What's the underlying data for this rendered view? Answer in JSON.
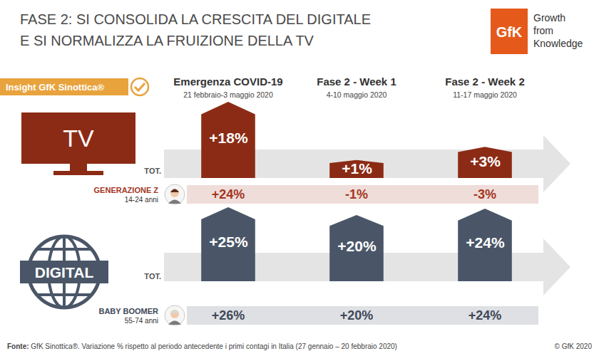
{
  "title": [
    "FASE 2: SI CONSOLIDA LA CRESCITA DEL DIGITALE",
    "E SI NORMALIZZA LA FRUIZIONE DELLA TV"
  ],
  "logo": {
    "text": "GfK",
    "tagline": "Growth from Knowledge"
  },
  "badge": "Insight GfK Sinottica®",
  "period_dates": [
    "21 febbraio-3 maggio 2020",
    "4-10 maggio 2020",
    "11-17 maggio 2020"
  ],
  "chart_data": [
    {
      "type": "bar",
      "title": "TV",
      "categories": [
        "Emergenza COVID-19",
        "Fase 2 - Week 1",
        "Fase 2 - Week 2"
      ],
      "data_labels": true,
      "tick_labels": false,
      "series": [
        {
          "name": "TOT.",
          "type": "bar",
          "color": "#8c2b15",
          "values": [
            18,
            1,
            3
          ],
          "value_labels": [
            "+18%",
            "+1%",
            "+3%"
          ]
        },
        {
          "name": "GENERAZIONE Z",
          "subtitle": "14-24 anni",
          "type": "text",
          "color": "#a3361f",
          "values": [
            24,
            -1,
            -3
          ],
          "value_labels": [
            "+24%",
            "-1%",
            "-3%"
          ]
        }
      ]
    },
    {
      "type": "bar",
      "title": "DIGITAL",
      "categories": [
        "Emergenza COVID-19",
        "Fase 2 - Week 1",
        "Fase 2 - Week 2"
      ],
      "data_labels": true,
      "tick_labels": false,
      "series": [
        {
          "name": "TOT.",
          "type": "bar",
          "color": "#4a5668",
          "values": [
            25,
            20,
            24
          ],
          "value_labels": [
            "+25%",
            "+20%",
            "+24%"
          ]
        },
        {
          "name": "BABY BOOMER",
          "subtitle": "55-74 anni",
          "type": "text",
          "color": "#3e4858",
          "values": [
            26,
            20,
            24
          ],
          "value_labels": [
            "+26%",
            "+20%",
            "+24%"
          ]
        }
      ]
    }
  ],
  "footer": {
    "source_label": "Fonte:",
    "source": "GfK Sinottica®. Variazione % rispetto al periodo antecedente i primi contagi in Italia (27 gennaio – 20 febbraio 2020)",
    "copyright": "© GfK 2020"
  }
}
